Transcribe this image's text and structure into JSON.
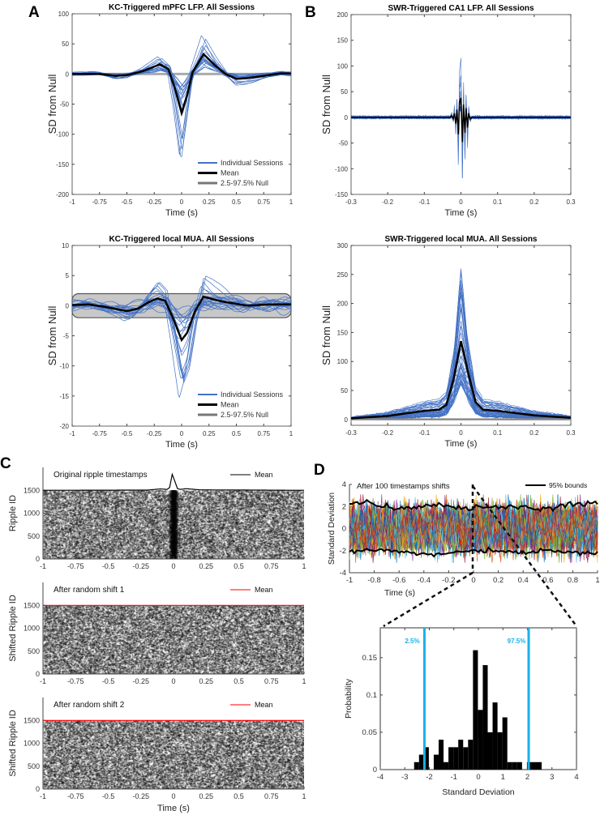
{
  "panel_letters": [
    "A",
    "B",
    "C",
    "D"
  ],
  "chart_data": [
    {
      "type": "line",
      "title": "KC-Triggered mPFC LFP. All Sessions",
      "xlabel": "Time (s)",
      "ylabel": "SD from Null",
      "xlim": [
        -1,
        1
      ],
      "ylim": [
        -200,
        100
      ],
      "xticks": [
        "-1",
        "-0.75",
        "-0.5",
        "-0.25",
        "0",
        "0.25",
        "0.5",
        "0.75",
        "1"
      ],
      "yticks": [
        "100",
        "50",
        "0",
        "-50",
        "-100",
        "-150",
        "-200"
      ],
      "legend": [
        "Individual Sessions",
        "Mean",
        "2.5-97.5% Null"
      ],
      "legend_position": "bottom-right",
      "null_band": [
        -2,
        2
      ],
      "individual_sessions": {
        "count": 20,
        "min": -162,
        "max": 88
      },
      "series": [
        {
          "name": "Mean",
          "x": [
            -1,
            -0.75,
            -0.6,
            -0.5,
            -0.35,
            -0.2,
            -0.12,
            -0.06,
            0,
            0.05,
            0.1,
            0.2,
            0.3,
            0.4,
            0.5,
            0.6,
            0.75,
            0.9,
            1
          ],
          "y": [
            0,
            0,
            -3,
            -2,
            5,
            16,
            8,
            -25,
            -65,
            -35,
            3,
            33,
            15,
            0,
            -8,
            -7,
            -3,
            1,
            1
          ]
        }
      ]
    },
    {
      "type": "line",
      "title": "SWR-Triggered CA1 LFP. All Sessions",
      "xlabel": "Time (s)",
      "ylabel": "SD from Null",
      "xlim": [
        -0.3,
        0.3
      ],
      "ylim": [
        -150,
        200
      ],
      "xticks": [
        "-0.3",
        "-0.2",
        "-0.1",
        "0",
        "0.1",
        "0.2",
        "0.3"
      ],
      "yticks": [
        "200",
        "150",
        "100",
        "50",
        "0",
        "-50",
        "-100",
        "-150"
      ],
      "individual_sessions": {
        "count": 20,
        "min": -118,
        "max": 153
      },
      "series": [
        {
          "name": "Mean",
          "x": [
            -0.3,
            -0.03,
            -0.025,
            -0.021,
            -0.018,
            -0.014,
            -0.011,
            -0.007,
            -0.004,
            0,
            0.004,
            0.007,
            0.011,
            0.014,
            0.018,
            0.021,
            0.025,
            0.03,
            0.3
          ],
          "y": [
            0,
            0,
            3,
            -3,
            8,
            -12,
            15,
            -33,
            30,
            38,
            -48,
            25,
            -30,
            18,
            -20,
            8,
            -3,
            0,
            0
          ]
        }
      ]
    },
    {
      "type": "line",
      "title": "KC-Triggered local MUA. All Sessions",
      "xlabel": "Time (s)",
      "ylabel": "SD from Null",
      "xlim": [
        -1,
        1
      ],
      "ylim": [
        -20,
        10
      ],
      "xticks": [
        "-1",
        "-0.75",
        "-0.5",
        "-0.25",
        "0",
        "0.25",
        "0.5",
        "0.75",
        "1"
      ],
      "yticks": [
        "10",
        "5",
        "0",
        "-5",
        "-10",
        "-15",
        "-20"
      ],
      "legend": [
        "Individual Sessions",
        "Mean",
        "2.5-97.5% Null"
      ],
      "legend_position": "bottom-right",
      "null_band": [
        -2,
        2
      ],
      "individual_sessions": {
        "count": 20,
        "min": -16,
        "max": 5.6
      },
      "series": [
        {
          "name": "Mean",
          "x": [
            -1,
            -0.85,
            -0.7,
            -0.5,
            -0.4,
            -0.3,
            -0.22,
            -0.15,
            -0.08,
            0,
            0.05,
            0.12,
            0.2,
            0.3,
            0.4,
            0.6,
            0.8,
            1
          ],
          "y": [
            0.1,
            0.2,
            -0.2,
            -0.9,
            -0.5,
            0.6,
            1.2,
            0.8,
            -2,
            -5.7,
            -4.5,
            -1,
            1.5,
            1,
            0.6,
            0,
            0.2,
            0.2
          ]
        }
      ]
    },
    {
      "type": "line",
      "title": "SWR-Triggered local MUA. All Sessions",
      "xlabel": "Time (s)",
      "ylabel": "SD from Null",
      "xlim": [
        -0.3,
        0.3
      ],
      "ylim": [
        -10,
        300
      ],
      "xticks": [
        "-0.3",
        "-0.2",
        "-0.1",
        "0",
        "0.1",
        "0.2",
        "0.3"
      ],
      "yticks": [
        "300",
        "250",
        "200",
        "150",
        "100",
        "50",
        "0"
      ],
      "null_band": [
        0,
        2
      ],
      "individual_sessions": {
        "count": 50,
        "min": 0,
        "max": 266
      },
      "series": [
        {
          "name": "Mean",
          "x": [
            -0.3,
            -0.2,
            -0.1,
            -0.06,
            -0.04,
            -0.02,
            0,
            0.02,
            0.04,
            0.06,
            0.1,
            0.2,
            0.3
          ],
          "y": [
            2,
            6,
            15,
            17,
            25,
            70,
            135,
            80,
            30,
            17,
            15,
            7,
            3
          ]
        }
      ]
    },
    {
      "type": "scatter",
      "title": "Original ripple timestamps",
      "legend": [
        "Mean"
      ],
      "legend_position": "top-right",
      "ylabel": "Ripple ID",
      "xlim": [
        -1,
        1
      ],
      "ylim": [
        0,
        2000
      ],
      "xticks": [
        "-1",
        "-0.75",
        "-0.5",
        "-0.25",
        "0",
        "0.25",
        "0.5",
        "0.75",
        "1"
      ],
      "yticks": [
        "1500",
        "1000",
        "500",
        "0"
      ],
      "n_ripples": 1500,
      "series": [
        {
          "name": "Mean",
          "color": "#000000",
          "x": [
            -1,
            -0.2,
            -0.1,
            -0.05,
            -0.03,
            -0.01,
            0.01,
            0.03,
            0.05,
            0.1,
            0.2,
            1
          ],
          "y": [
            1500,
            1505,
            1530,
            1520,
            1560,
            1850,
            1700,
            1540,
            1520,
            1535,
            1510,
            1500
          ]
        }
      ]
    },
    {
      "type": "scatter",
      "title": "After random shift 1",
      "legend": [
        "Mean"
      ],
      "legend_position": "top-right",
      "ylabel": "Shifted Ripple ID",
      "xlim": [
        -1,
        1
      ],
      "ylim": [
        0,
        2000
      ],
      "xticks": [
        "-1",
        "-0.75",
        "-0.5",
        "-0.25",
        "0",
        "0.25",
        "0.5",
        "0.75",
        "1"
      ],
      "yticks": [
        "1500",
        "1000",
        "500",
        "0"
      ],
      "n_ripples": 1500,
      "series": [
        {
          "name": "Mean",
          "color": "#ff0000",
          "x": [
            -1,
            1
          ],
          "y": [
            1500,
            1500
          ]
        }
      ]
    },
    {
      "type": "scatter",
      "title": "After random shift 2",
      "legend": [
        "Mean"
      ],
      "legend_position": "top-right",
      "ylabel": "Shifted Ripple ID",
      "xlabel": "Time (s)",
      "xlim": [
        -1,
        1
      ],
      "ylim": [
        0,
        2000
      ],
      "xticks": [
        "-1",
        "-0.75",
        "-0.5",
        "-0.25",
        "0",
        "0.25",
        "0.5",
        "0.75",
        "1"
      ],
      "yticks": [
        "1500",
        "1000",
        "500",
        "0"
      ],
      "n_ripples": 1500,
      "series": [
        {
          "name": "Mean",
          "color": "#ff0000",
          "x": [
            -1,
            1
          ],
          "y": [
            1500,
            1500
          ]
        }
      ]
    },
    {
      "type": "line",
      "title": "After 100 timestamps shifts",
      "legend": [
        "95% bounds"
      ],
      "legend_position": "top-right",
      "xlabel": "Time (s)",
      "ylabel": "Standard Deviation",
      "xlim": [
        -1,
        1
      ],
      "ylim": [
        -4,
        4
      ],
      "xticks": [
        "-1",
        "-0.8",
        "-0.6",
        "-0.4",
        "-0.2",
        "0",
        "0.2",
        "0.4",
        "0.6",
        "0.8",
        "1"
      ],
      "yticks": [
        "4",
        "2",
        "0",
        "-2",
        "-4"
      ],
      "n_shuffles": 100,
      "upper_bound_mean": 2.0,
      "lower_bound_mean": -2.1
    },
    {
      "type": "bar",
      "xlabel": "Standard Deviation",
      "ylabel": "Probability",
      "xlim": [
        -4,
        4
      ],
      "ylim": [
        0,
        0.19
      ],
      "xticks": [
        "-4",
        "-3",
        "-2",
        "-1",
        "0",
        "1",
        "2",
        "3",
        "4"
      ],
      "yticks": [
        "0.15",
        "0.1",
        "0.05",
        "0"
      ],
      "bin_start": -2.62,
      "bin_width": 0.2,
      "values": [
        0.01,
        0.02,
        0.03,
        0,
        0.02,
        0.04,
        0.01,
        0.03,
        0.03,
        0.04,
        0.03,
        0.04,
        0.16,
        0.08,
        0.14,
        0.05,
        0.09,
        0.05,
        0.07,
        0.01,
        0.01,
        0.01,
        0,
        0.01,
        0.01,
        0.01
      ],
      "percentiles": [
        {
          "label": "2.5%",
          "value": -2.2
        },
        {
          "label": "97.5%",
          "value": 2.05
        }
      ],
      "percentile_color": "#1ab0e8"
    }
  ],
  "colors": {
    "sessions": "#4472c4",
    "mean": "#000000",
    "null": "#888888"
  }
}
